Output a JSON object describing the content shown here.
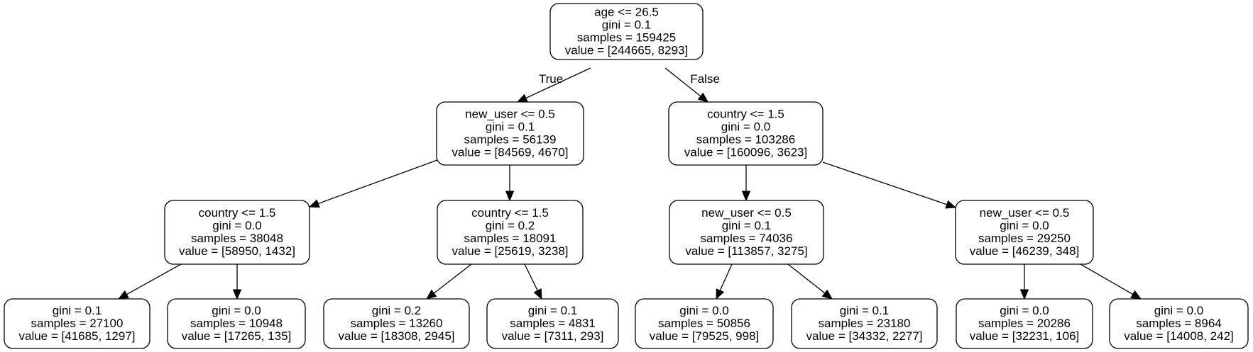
{
  "tree": {
    "nodes": [
      {
        "id": "n0",
        "lines": [
          "age <= 26.5",
          "gini = 0.1",
          "samples = 159425",
          "value = [244665, 8293]"
        ]
      },
      {
        "id": "n1",
        "lines": [
          "new_user <= 0.5",
          "gini = 0.1",
          "samples = 56139",
          "value = [84569, 4670]"
        ]
      },
      {
        "id": "n2",
        "lines": [
          "country <= 1.5",
          "gini = 0.0",
          "samples = 103286",
          "value = [160096, 3623]"
        ]
      },
      {
        "id": "n3",
        "lines": [
          "country <= 1.5",
          "gini = 0.0",
          "samples = 38048",
          "value = [58950, 1432]"
        ]
      },
      {
        "id": "n4",
        "lines": [
          "country <= 1.5",
          "gini = 0.2",
          "samples = 18091",
          "value = [25619, 3238]"
        ]
      },
      {
        "id": "n5",
        "lines": [
          "new_user <= 0.5",
          "gini = 0.1",
          "samples = 74036",
          "value = [113857, 3275]"
        ]
      },
      {
        "id": "n6",
        "lines": [
          "new_user <= 0.5",
          "gini = 0.0",
          "samples = 29250",
          "value = [46239, 348]"
        ]
      },
      {
        "id": "n7",
        "lines": [
          "gini = 0.1",
          "samples = 27100",
          "value = [41685, 1297]"
        ]
      },
      {
        "id": "n8",
        "lines": [
          "gini = 0.0",
          "samples = 10948",
          "value = [17265, 135]"
        ]
      },
      {
        "id": "n9",
        "lines": [
          "gini = 0.2",
          "samples = 13260",
          "value = [18308, 2945]"
        ]
      },
      {
        "id": "n10",
        "lines": [
          "gini = 0.1",
          "samples = 4831",
          "value = [7311, 293]"
        ]
      },
      {
        "id": "n11",
        "lines": [
          "gini = 0.0",
          "samples = 50856",
          "value = [79525, 998]"
        ]
      },
      {
        "id": "n12",
        "lines": [
          "gini = 0.1",
          "samples = 23180",
          "value = [34332, 2277]"
        ]
      },
      {
        "id": "n13",
        "lines": [
          "gini = 0.0",
          "samples = 20286",
          "value = [32231, 106]"
        ]
      },
      {
        "id": "n14",
        "lines": [
          "gini = 0.0",
          "samples = 8964",
          "value = [14008, 242]"
        ]
      }
    ],
    "edges": [
      {
        "from": "n0",
        "to": "n1",
        "label": "True"
      },
      {
        "from": "n0",
        "to": "n2",
        "label": "False"
      },
      {
        "from": "n1",
        "to": "n3",
        "label": ""
      },
      {
        "from": "n1",
        "to": "n4",
        "label": ""
      },
      {
        "from": "n2",
        "to": "n5",
        "label": ""
      },
      {
        "from": "n2",
        "to": "n6",
        "label": ""
      },
      {
        "from": "n3",
        "to": "n7",
        "label": ""
      },
      {
        "from": "n3",
        "to": "n8",
        "label": ""
      },
      {
        "from": "n4",
        "to": "n9",
        "label": ""
      },
      {
        "from": "n4",
        "to": "n10",
        "label": ""
      },
      {
        "from": "n5",
        "to": "n11",
        "label": ""
      },
      {
        "from": "n5",
        "to": "n12",
        "label": ""
      },
      {
        "from": "n6",
        "to": "n13",
        "label": ""
      },
      {
        "from": "n6",
        "to": "n14",
        "label": ""
      }
    ]
  }
}
